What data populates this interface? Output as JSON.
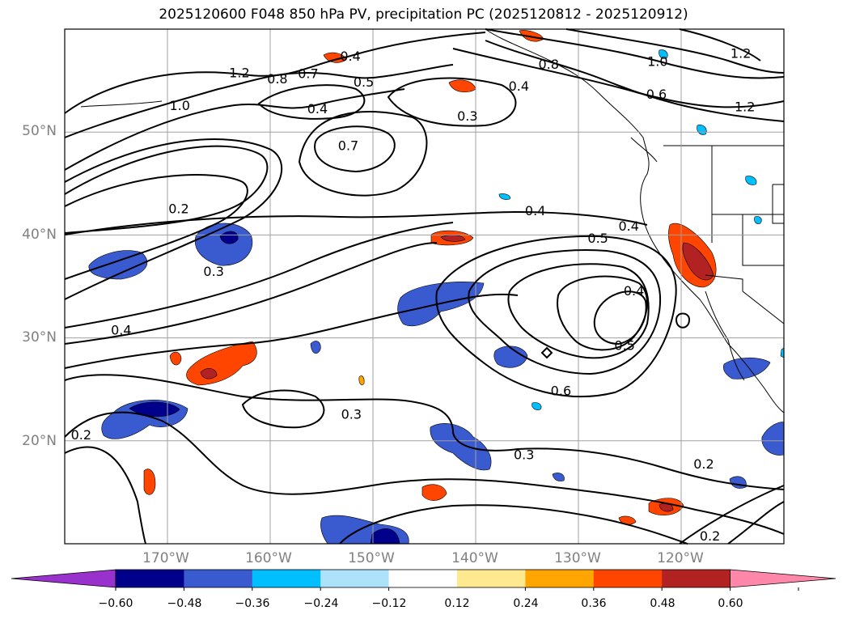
{
  "title": "2025120600 F048 850 hPa PV, precipitation PC (2025120812 - 2025120912)",
  "lat_labels": [
    "50°N",
    "40°N",
    "30°N",
    "20°N"
  ],
  "lon_labels": [
    "170°W",
    "160°W",
    "150°W",
    "140°W",
    "130°W",
    "120°W"
  ],
  "colorbar": {
    "tick_labels": [
      "−0.60",
      "−0.48",
      "−0.36",
      "−0.24",
      "−0.12",
      "0.12",
      "0.24",
      "0.36",
      "0.48",
      "0.60"
    ],
    "colors": [
      "#9932cc",
      "#00008b",
      "#3a5bd0",
      "#00bfff",
      "#ade2fa",
      "#ffffff",
      "#ffe98f",
      "#ffa500",
      "#ff4500",
      "#b22222",
      "#ff88aa"
    ]
  },
  "contour_labels": [
    {
      "text": "1.2",
      "lon": -163,
      "lat": 55.8
    },
    {
      "text": "0.8",
      "lon": -159.3,
      "lat": 55.2
    },
    {
      "text": "0.7",
      "lon": -156.3,
      "lat": 55.7
    },
    {
      "text": "0.4",
      "lon": -152.2,
      "lat": 57.4
    },
    {
      "text": "0.5",
      "lon": -150.9,
      "lat": 54.9
    },
    {
      "text": "1.0",
      "lon": -168.8,
      "lat": 52.6
    },
    {
      "text": "0.4",
      "lon": -155.4,
      "lat": 52.3
    },
    {
      "text": "0.7",
      "lon": -152.4,
      "lat": 48.7
    },
    {
      "text": "0.3",
      "lon": -140.8,
      "lat": 51.6
    },
    {
      "text": "0.4",
      "lon": -135.8,
      "lat": 54.5
    },
    {
      "text": "0.8",
      "lon": -132.9,
      "lat": 56.6
    },
    {
      "text": "1.0",
      "lon": -122.3,
      "lat": 56.9
    },
    {
      "text": "0.6",
      "lon": -122.4,
      "lat": 53.7
    },
    {
      "text": "1.2",
      "lon": -114.2,
      "lat": 57.7
    },
    {
      "text": "1.2",
      "lon": -113.8,
      "lat": 52.5
    },
    {
      "text": "0.2",
      "lon": -168.9,
      "lat": 42.6
    },
    {
      "text": "0.3",
      "lon": -165.5,
      "lat": 36.5
    },
    {
      "text": "0.4",
      "lon": -134.2,
      "lat": 42.4
    },
    {
      "text": "0.4",
      "lon": -125.1,
      "lat": 40.9
    },
    {
      "text": "0.5",
      "lon": -128.1,
      "lat": 39.7
    },
    {
      "text": "0.4",
      "lon": -124.6,
      "lat": 34.6
    },
    {
      "text": "0.5",
      "lon": -125.5,
      "lat": 29.3
    },
    {
      "text": "0.4",
      "lon": -174.5,
      "lat": 30.8
    },
    {
      "text": "0.6",
      "lon": -131.7,
      "lat": 24.9
    },
    {
      "text": "0.3",
      "lon": -152.1,
      "lat": 22.6
    },
    {
      "text": "0.3",
      "lon": -135.3,
      "lat": 18.7
    },
    {
      "text": "0.2",
      "lon": -178.4,
      "lat": 20.6
    },
    {
      "text": "0.2",
      "lon": -117.8,
      "lat": 17.8
    },
    {
      "text": "0.2",
      "lon": -117.2,
      "lat": 10.8
    }
  ]
}
